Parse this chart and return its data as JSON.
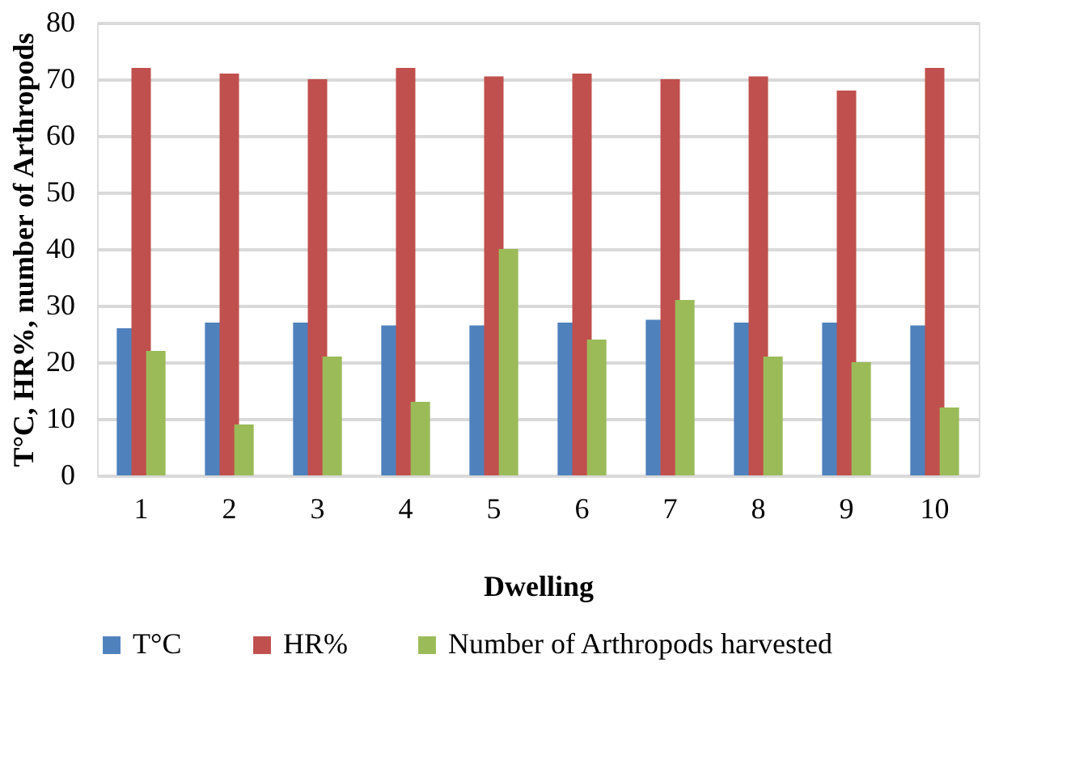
{
  "chart_data": {
    "type": "bar",
    "xlabel": "Dwelling",
    "ylabel": "T°C, HR%, number of Arthropods",
    "categories": [
      "1",
      "2",
      "3",
      "4",
      "5",
      "6",
      "7",
      "8",
      "9",
      "10"
    ],
    "series": [
      {
        "name": "T°C",
        "color": "#4f81bd",
        "values": [
          26,
          27,
          27,
          26.5,
          26.5,
          27,
          27.5,
          27,
          27,
          26.5
        ]
      },
      {
        "name": "HR%",
        "color": "#c0504d",
        "values": [
          72,
          71,
          70,
          72,
          70.5,
          71,
          70,
          70.5,
          68,
          72
        ]
      },
      {
        "name": "Number of Arthropods harvested",
        "color": "#9bbb59",
        "values": [
          22,
          9,
          21,
          13,
          40,
          24,
          31,
          21,
          20,
          12
        ]
      }
    ],
    "ylim": [
      0,
      80
    ],
    "yticks": [
      0,
      10,
      20,
      30,
      40,
      50,
      60,
      70,
      80
    ],
    "grid": "y",
    "legend": "bottom"
  }
}
